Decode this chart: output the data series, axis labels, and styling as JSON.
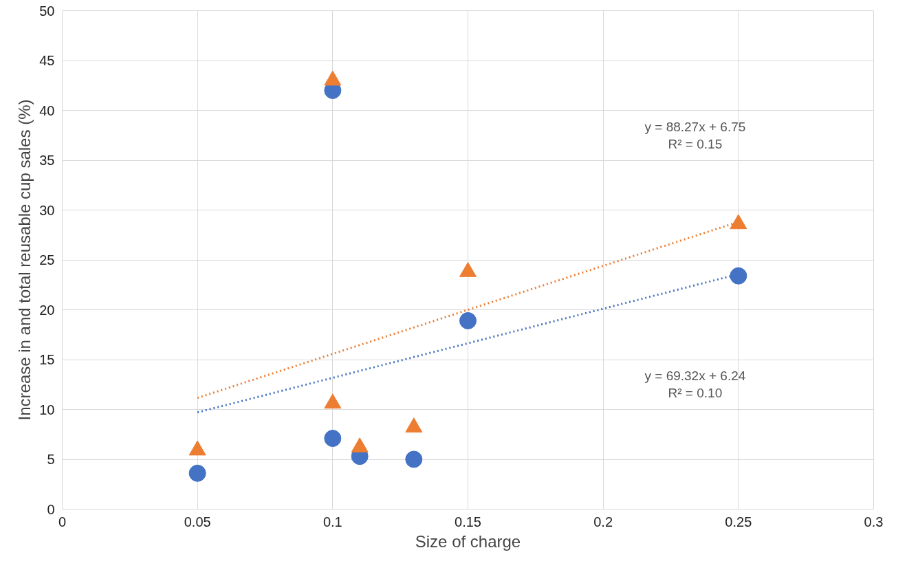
{
  "chart_data": {
    "type": "scatter",
    "xlabel": "Size of charge",
    "ylabel": "Increase in and total reusable cup sales (%)",
    "xlim": [
      0,
      0.3
    ],
    "ylim": [
      0,
      50
    ],
    "xticks": [
      0,
      0.05,
      0.1,
      0.15,
      0.2,
      0.25,
      0.3
    ],
    "yticks": [
      0,
      5,
      10,
      15,
      20,
      25,
      30,
      35,
      40,
      45,
      50
    ],
    "grid": true,
    "series": [
      {
        "marker": "circle",
        "color": "#4472c4",
        "x": [
          0.05,
          0.1,
          0.1,
          0.11,
          0.13,
          0.15,
          0.25
        ],
        "values": [
          3.6,
          42,
          7.1,
          5.3,
          5.0,
          18.9,
          23.4
        ]
      },
      {
        "marker": "triangle",
        "color": "#ed7d31",
        "x": [
          0.05,
          0.1,
          0.1,
          0.11,
          0.13,
          0.15,
          0.25
        ],
        "values": [
          5.9,
          43,
          10.6,
          6.2,
          8.2,
          23.8,
          28.6
        ]
      },
      {
        "type": "line",
        "line_style": "dotted",
        "marker": "none",
        "color": "#4472c4",
        "x": [
          0.05,
          0.25
        ],
        "values": [
          9.71,
          23.57
        ]
      },
      {
        "type": "line",
        "line_style": "dotted",
        "marker": "none",
        "color": "#ed7d31",
        "x": [
          0.05,
          0.25
        ],
        "values": [
          11.16,
          28.82
        ]
      }
    ],
    "annotations": [
      "y = 88.27x + 6.75\nR² = 0.15",
      "y = 69.32x + 6.24\nR² = 0.10"
    ]
  }
}
